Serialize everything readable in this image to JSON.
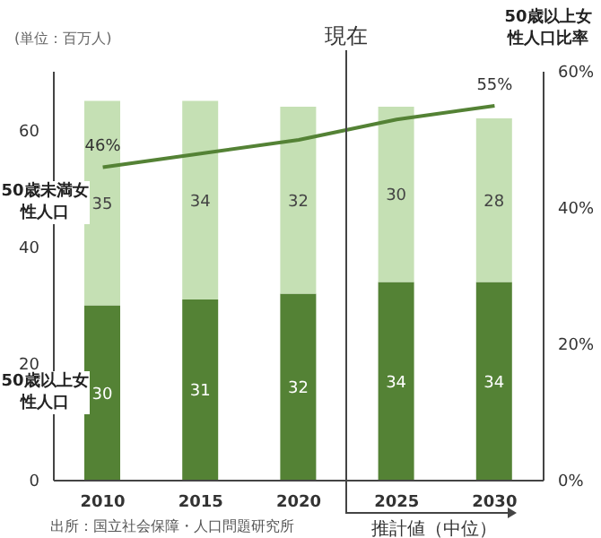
{
  "chart_data": {
    "type": "bar",
    "stacked": true,
    "categories": [
      "2010",
      "2015",
      "2020",
      "2025",
      "2030"
    ],
    "series": [
      {
        "name": "50歳以上女性人口",
        "color": "#548235",
        "values": [
          30,
          31,
          32,
          34,
          34
        ]
      },
      {
        "name": "50歳未満女性人口",
        "color": "#c5e0b4",
        "values": [
          35,
          34,
          32,
          30,
          28
        ]
      },
      {
        "type": "line",
        "axis": "y2",
        "color": "#548235",
        "values": [
          46,
          48,
          50,
          53,
          55
        ],
        "value_labels": [
          "46%",
          null,
          null,
          null,
          "55%"
        ]
      }
    ],
    "data_labels": true,
    "marker": "none",
    "ylim": [
      0,
      70
    ],
    "yticks": [
      0,
      20,
      40,
      60
    ],
    "y2lim": [
      0,
      60
    ],
    "y2ticks": [
      {
        "value": 0,
        "label": "0%"
      },
      {
        "value": 20,
        "label": "20%"
      },
      {
        "value": 40,
        "label": "40%"
      },
      {
        "value": 60,
        "label": "60%"
      }
    ],
    "y2label": "50歳以上女性人口比率",
    "annotations": [
      "(単位：百万人)",
      "現在",
      "推計値（中位）",
      "出所：国立社会保障・人口問題研究所"
    ]
  }
}
